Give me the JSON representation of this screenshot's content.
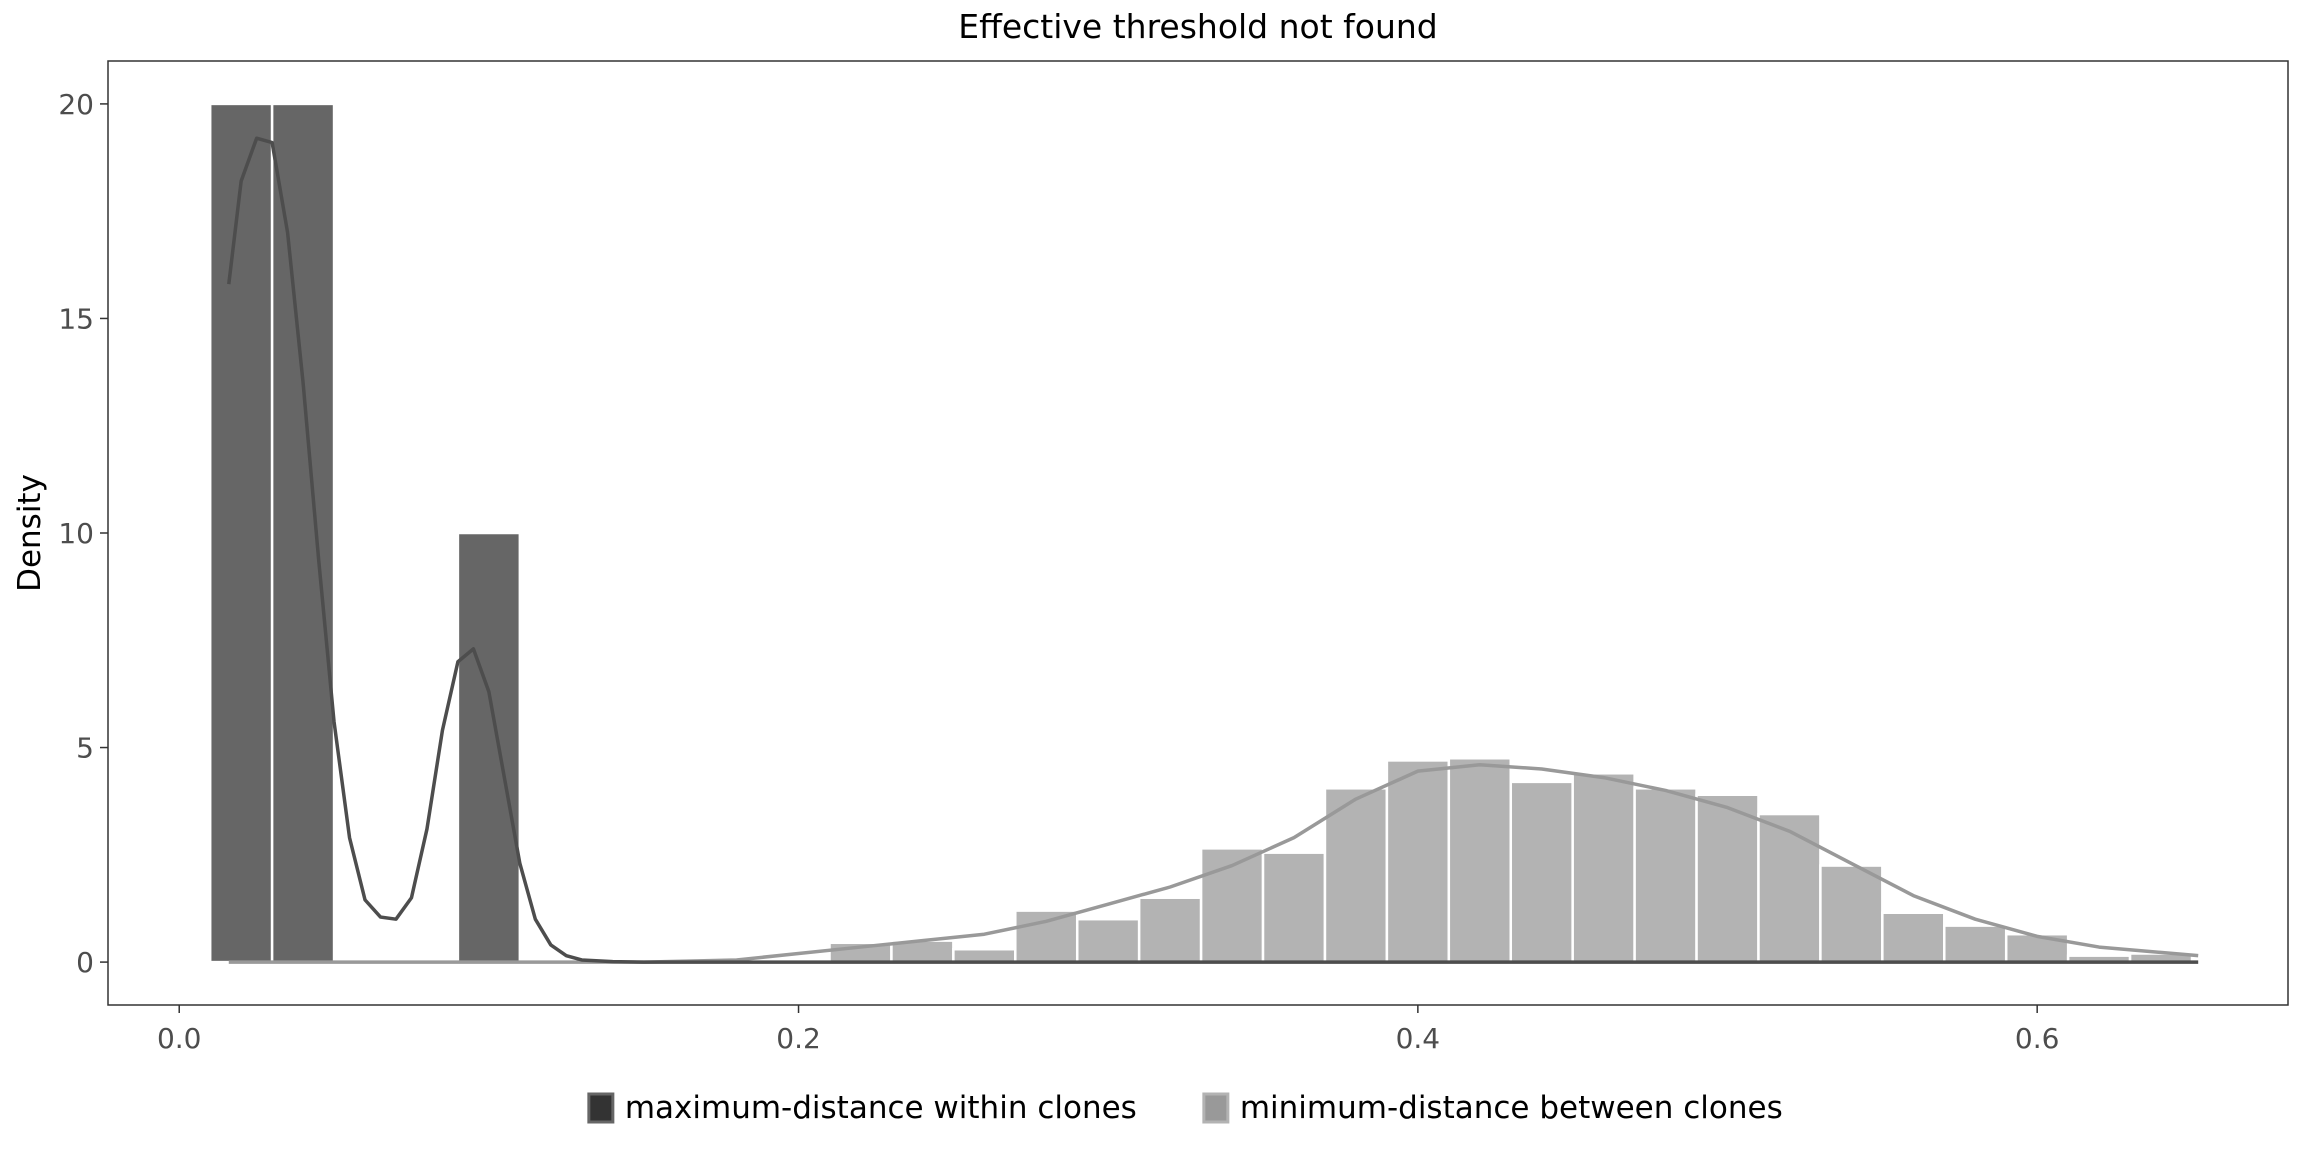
{
  "chart_data": {
    "type": "bar",
    "title": "Effective threshold not found",
    "xlabel": "",
    "ylabel": "Density",
    "xlim": [
      -0.023,
      0.681
    ],
    "ylim": [
      -1.0,
      21.0
    ],
    "x_ticks": [
      0.0,
      0.2,
      0.4,
      0.6
    ],
    "x_tick_labels": [
      "0.0",
      "0.2",
      "0.4",
      "0.6"
    ],
    "y_ticks": [
      0,
      5,
      10,
      15,
      20
    ],
    "y_tick_labels": [
      "0",
      "5",
      "10",
      "15",
      "20"
    ],
    "grid": false,
    "legend_position": "bottom",
    "bin_width": 0.02,
    "series": [
      {
        "name": "maximum-distance within clones",
        "color": "#666666",
        "legend_key_color": "#333333",
        "curve_color": "#4d4d4d",
        "bins": [
          {
            "x0": 0.01,
            "x1": 0.03,
            "value": 20.0
          },
          {
            "x0": 0.03,
            "x1": 0.05,
            "value": 20.0
          },
          {
            "x0": 0.09,
            "x1": 0.11,
            "value": 10.0
          }
        ],
        "density_curve": {
          "x": [
            0.016,
            0.02,
            0.025,
            0.03,
            0.035,
            0.04,
            0.045,
            0.05,
            0.055,
            0.06,
            0.065,
            0.07,
            0.075,
            0.08,
            0.085,
            0.09,
            0.095,
            0.1,
            0.105,
            0.11,
            0.115,
            0.12,
            0.125,
            0.13,
            0.14,
            0.15,
            0.17,
            0.2,
            0.3,
            0.4,
            0.5,
            0.6,
            0.652
          ],
          "y": [
            15.8,
            18.2,
            19.2,
            19.1,
            17.0,
            13.5,
            9.4,
            5.6,
            2.9,
            1.45,
            1.05,
            1.0,
            1.5,
            3.1,
            5.4,
            7.0,
            7.3,
            6.3,
            4.3,
            2.3,
            1.0,
            0.4,
            0.15,
            0.05,
            0.01,
            0.0,
            0.0,
            0.0,
            0.0,
            0.0,
            0.0,
            0.0,
            0.0
          ]
        }
      },
      {
        "name": "minimum-distance between clones",
        "color": "#b3b3b3",
        "legend_key_color": "#999999",
        "curve_color": "#999999",
        "bins": [
          {
            "x0": 0.21,
            "x1": 0.23,
            "value": 0.45
          },
          {
            "x0": 0.23,
            "x1": 0.25,
            "value": 0.5
          },
          {
            "x0": 0.25,
            "x1": 0.27,
            "value": 0.3
          },
          {
            "x0": 0.27,
            "x1": 0.29,
            "value": 1.2
          },
          {
            "x0": 0.29,
            "x1": 0.31,
            "value": 1.0
          },
          {
            "x0": 0.31,
            "x1": 0.33,
            "value": 1.5
          },
          {
            "x0": 0.33,
            "x1": 0.35,
            "value": 2.65
          },
          {
            "x0": 0.35,
            "x1": 0.37,
            "value": 2.55
          },
          {
            "x0": 0.37,
            "x1": 0.39,
            "value": 4.05
          },
          {
            "x0": 0.39,
            "x1": 0.41,
            "value": 4.7
          },
          {
            "x0": 0.41,
            "x1": 0.43,
            "value": 4.75
          },
          {
            "x0": 0.43,
            "x1": 0.45,
            "value": 4.2
          },
          {
            "x0": 0.45,
            "x1": 0.47,
            "value": 4.4
          },
          {
            "x0": 0.47,
            "x1": 0.49,
            "value": 4.05
          },
          {
            "x0": 0.49,
            "x1": 0.51,
            "value": 3.9
          },
          {
            "x0": 0.51,
            "x1": 0.53,
            "value": 3.45
          },
          {
            "x0": 0.53,
            "x1": 0.55,
            "value": 2.25
          },
          {
            "x0": 0.55,
            "x1": 0.57,
            "value": 1.15
          },
          {
            "x0": 0.57,
            "x1": 0.59,
            "value": 0.85
          },
          {
            "x0": 0.59,
            "x1": 0.61,
            "value": 0.65
          },
          {
            "x0": 0.61,
            "x1": 0.63,
            "value": 0.15
          },
          {
            "x0": 0.63,
            "x1": 0.65,
            "value": 0.2
          }
        ],
        "density_curve": {
          "x": [
            0.016,
            0.1,
            0.15,
            0.18,
            0.2,
            0.22,
            0.24,
            0.26,
            0.28,
            0.3,
            0.32,
            0.34,
            0.36,
            0.38,
            0.4,
            0.42,
            0.44,
            0.46,
            0.48,
            0.5,
            0.52,
            0.54,
            0.56,
            0.58,
            0.6,
            0.62,
            0.652
          ],
          "y": [
            0.0,
            0.0,
            0.0,
            0.05,
            0.2,
            0.35,
            0.5,
            0.65,
            0.95,
            1.35,
            1.75,
            2.25,
            2.9,
            3.8,
            4.45,
            4.6,
            4.5,
            4.3,
            4.0,
            3.6,
            3.05,
            2.3,
            1.55,
            1.0,
            0.6,
            0.35,
            0.15
          ]
        }
      }
    ]
  }
}
